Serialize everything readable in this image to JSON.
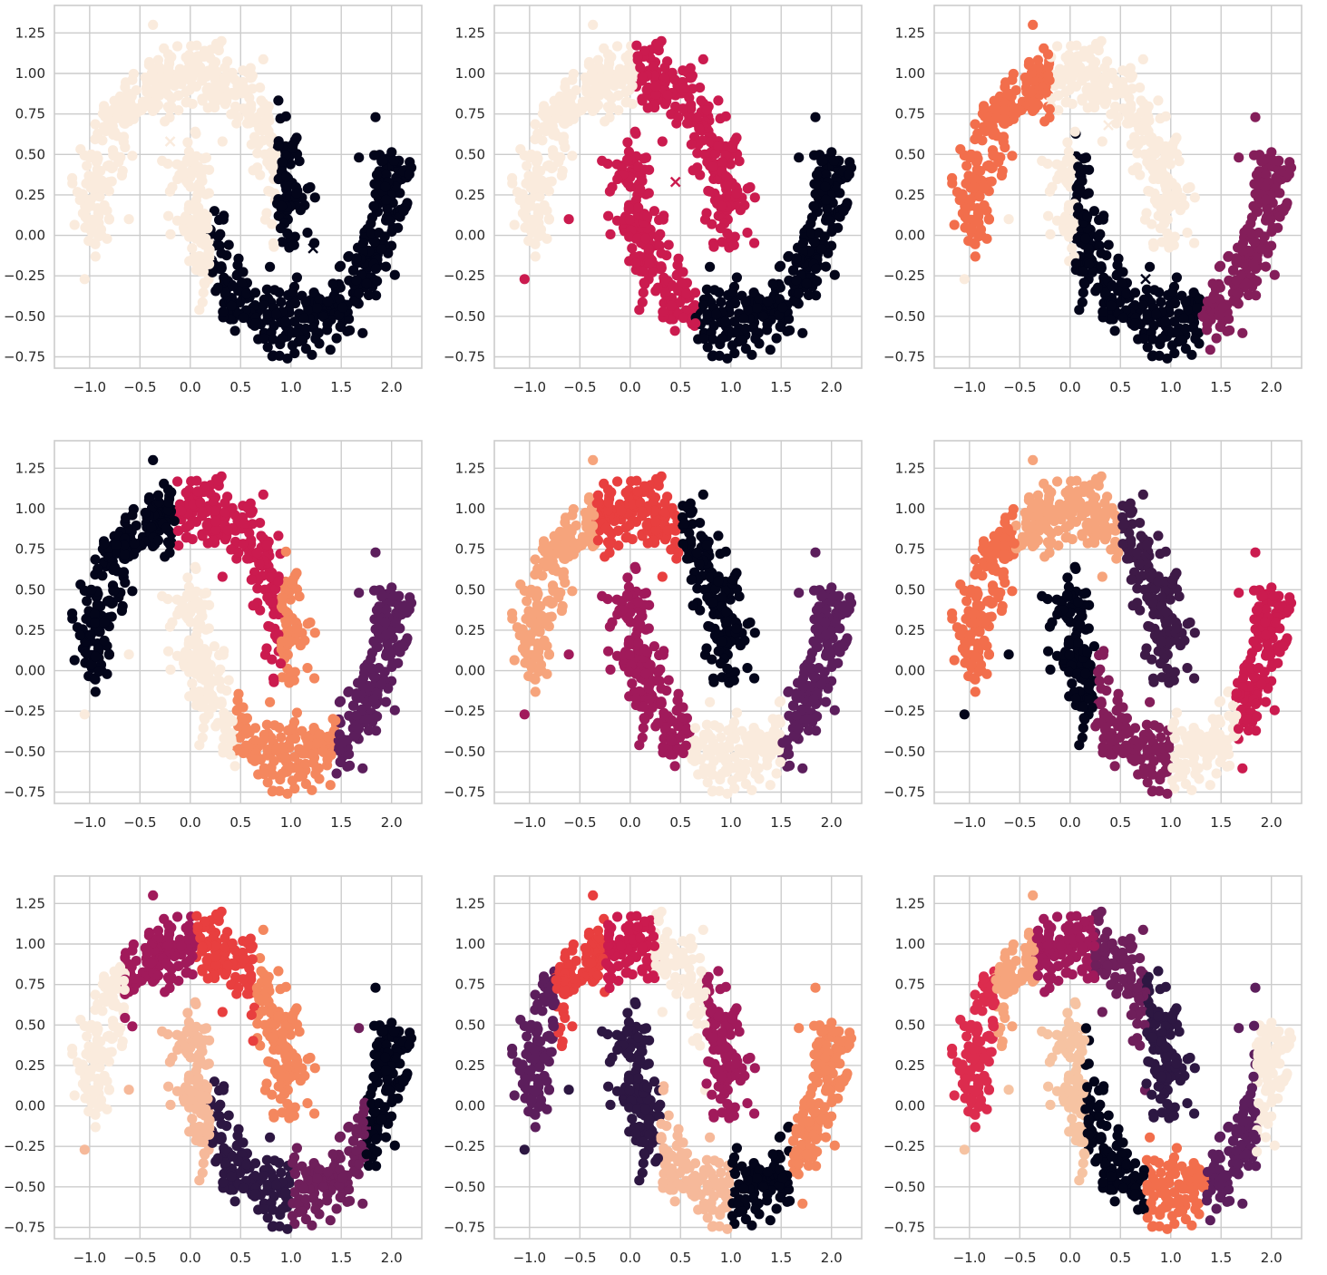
{
  "chart_data": {
    "type": "scatter",
    "title": "",
    "xlabel": "",
    "ylabel": "",
    "grid": true,
    "legend": "none",
    "xlim": [
      -1.35,
      2.3
    ],
    "ylim": [
      -0.82,
      1.42
    ],
    "x_ticks": [
      -1.0,
      -0.5,
      0.0,
      0.5,
      1.0,
      1.5,
      2.0
    ],
    "x_tick_labels": [
      "−1.0",
      "−0.5",
      "0.0",
      "0.5",
      "1.0",
      "1.5",
      "2.0"
    ],
    "y_ticks": [
      -0.75,
      -0.5,
      -0.25,
      0.0,
      0.25,
      0.5,
      0.75,
      1.0,
      1.25
    ],
    "y_tick_labels": [
      "−0.75",
      "−0.50",
      "−0.25",
      "0.00",
      "0.25",
      "0.50",
      "0.75",
      "1.00",
      "1.25"
    ],
    "dataset": "two interleaving half-moons (about 1000 points with noise)",
    "outliers": [
      {
        "x": -0.37,
        "y": 1.3
      },
      {
        "x": 1.84,
        "y": 0.73
      },
      {
        "x": 0.09,
        "y": -0.46
      },
      {
        "x": -1.05,
        "y": -0.27
      },
      {
        "x": -0.61,
        "y": 0.1
      },
      {
        "x": 0.77,
        "y": -0.69
      },
      {
        "x": -0.28,
        "y": 0.46
      },
      {
        "x": 0.32,
        "y": 0.58
      }
    ],
    "panels": [
      {
        "n_clusters": 2,
        "clusters": [
          {
            "color": "#faebdd",
            "region": "left moon, x up to 0.85; lower moon x up to 0.2",
            "center": [
              -0.2,
              0.58
            ]
          },
          {
            "color": "#03051a",
            "region": "rest of both moons",
            "center": [
              1.22,
              -0.08
            ]
          }
        ]
      },
      {
        "n_clusters": 3,
        "clusters": [
          {
            "color": "#faebdd",
            "region": "upper moon x < 0.05",
            "center": null
          },
          {
            "color": "#cb1b4f",
            "region": "upper moon x >= 0.05 plus lower moon x < 0.65",
            "center": [
              0.45,
              0.33
            ]
          },
          {
            "color": "#03051a",
            "region": "lower moon x >= 0.65",
            "center": null
          }
        ]
      },
      {
        "n_clusters": 4,
        "clusters": [
          {
            "color": "#f26e4c",
            "region": "upper moon x < -0.2",
            "center": null
          },
          {
            "color": "#faebdd",
            "region": "upper moon x >= -0.2; lower moon x < 0.05",
            "center": [
              0.38,
              0.68
            ]
          },
          {
            "color": "#03051a",
            "region": "lower moon 0.05..1.3",
            "center": [
              0.75,
              -0.27
            ]
          },
          {
            "color": "#841e5a",
            "region": "lower moon x >= 1.3",
            "center": null
          }
        ]
      },
      {
        "n_clusters": 5,
        "clusters": [
          {
            "color": "#03051a",
            "region": "upper moon x < -0.15"
          },
          {
            "color": "#cb1b4f",
            "region": "upper moon -0.15..0.9"
          },
          {
            "color": "#f4875e",
            "region": "upper moon x >= 0.9; lower moon 0.45..1.45"
          },
          {
            "color": "#faebdd",
            "region": "lower moon x < 0.45"
          },
          {
            "color": "#5c1e5c",
            "region": "lower moon x >= 1.45"
          }
        ]
      },
      {
        "n_clusters": 6,
        "clusters": [
          {
            "color": "#f6a47c",
            "region": "upper moon x < -0.35"
          },
          {
            "color": "#e83f3f",
            "region": "upper moon -0.35..0.5"
          },
          {
            "color": "#03051a",
            "region": "upper moon x >= 0.5"
          },
          {
            "color": "#a11a5b",
            "region": "lower moon x < 0.6"
          },
          {
            "color": "#faebdd",
            "region": "lower moon 0.6..1.5"
          },
          {
            "color": "#5c1e5c",
            "region": "lower moon x >= 1.5"
          }
        ]
      },
      {
        "n_clusters": 7,
        "clusters": [
          {
            "color": "#f26e4c",
            "region": "upper moon x < -0.55"
          },
          {
            "color": "#f6a47c",
            "region": "upper moon -0.55..0.5"
          },
          {
            "color": "#3e1a47",
            "region": "upper moon x >= 0.5"
          },
          {
            "color": "#03051a",
            "region": "lower moon x < 0.25"
          },
          {
            "color": "#841e5a",
            "region": "lower moon 0.25..1.0"
          },
          {
            "color": "#faebdd",
            "region": "lower moon 1.0..1.65"
          },
          {
            "color": "#cb1b4f",
            "region": "lower moon x >= 1.65"
          }
        ]
      },
      {
        "n_clusters": 8,
        "clusters": [
          {
            "color": "#faebdd",
            "region": "upper moon x < -0.65"
          },
          {
            "color": "#a11a5b",
            "region": "upper moon -0.65..0.05"
          },
          {
            "color": "#e83f3f",
            "region": "upper moon 0.05..0.65"
          },
          {
            "color": "#f4875e",
            "region": "upper moon x >= 0.65"
          },
          {
            "color": "#f6b99a",
            "region": "lower moon x < 0.2"
          },
          {
            "color": "#2d1742",
            "region": "lower moon 0.2..1.0"
          },
          {
            "color": "#6f1f5b",
            "region": "lower moon 1.0..1.75"
          },
          {
            "color": "#03051a",
            "region": "lower moon x >= 1.75"
          }
        ]
      },
      {
        "n_clusters": 9,
        "clusters": [
          {
            "color": "#5c1e5c",
            "region": "upper moon x < -0.75"
          },
          {
            "color": "#e83f3f",
            "region": "upper moon -0.75..-0.25"
          },
          {
            "color": "#cb1b4f",
            "region": "upper moon -0.25..0.25"
          },
          {
            "color": "#faebdd",
            "region": "upper moon 0.25..0.75"
          },
          {
            "color": "#a11a5b",
            "region": "upper moon x >= 0.75"
          },
          {
            "color": "#2d1742",
            "region": "lower moon x < 0.3"
          },
          {
            "color": "#f6b99a",
            "region": "lower moon 0.3..1.0"
          },
          {
            "color": "#03051a",
            "region": "lower moon 1.0..1.6"
          },
          {
            "color": "#f4875e",
            "region": "lower moon x >= 1.6"
          }
        ]
      },
      {
        "n_clusters": 10,
        "clusters": [
          {
            "color": "#dc2c4e",
            "region": "upper moon x < -0.75"
          },
          {
            "color": "#f6a47c",
            "region": "upper moon -0.75..-0.35"
          },
          {
            "color": "#a11a5b",
            "region": "upper moon -0.35..0.25"
          },
          {
            "color": "#6f1f5b",
            "region": "upper moon 0.25..0.75"
          },
          {
            "color": "#2d1742",
            "region": "upper moon x >= 0.75"
          },
          {
            "color": "#f6c3a2",
            "region": "lower moon x < 0.15"
          },
          {
            "color": "#03051a",
            "region": "lower moon 0.15..0.75"
          },
          {
            "color": "#f26e4c",
            "region": "lower moon 0.75..1.35"
          },
          {
            "color": "#5c1e5c",
            "region": "lower moon 1.35..1.85"
          },
          {
            "color": "#faebdd",
            "region": "lower moon x >= 1.85"
          }
        ]
      }
    ]
  }
}
